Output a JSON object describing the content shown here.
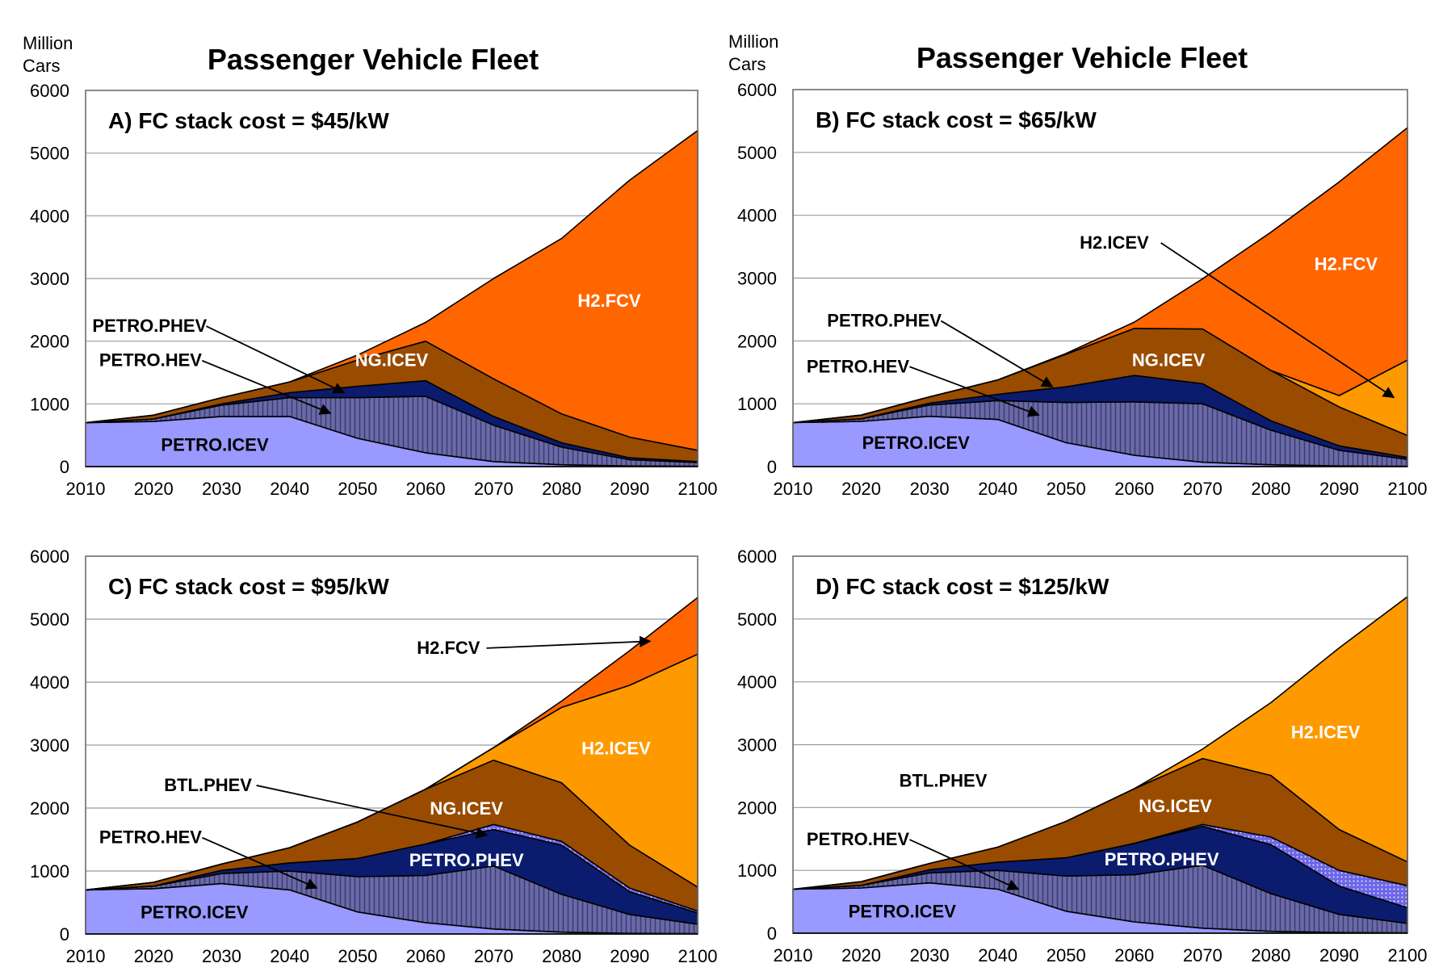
{
  "figure_title": "Passenger Vehicle Fleet",
  "unit_label_line1": "Million",
  "unit_label_line2": "Cars",
  "colors": {
    "PETRO.ICEV": "#9999ff",
    "PETRO.HEV": "#6a6aa6",
    "PETRO.PHEV": "#0b1c6e",
    "BTL.PHEV": "#6c66e8",
    "NG.ICEV": "#994c00",
    "H2.ICEV": "#ff9900",
    "H2.FCV": "#ff6600"
  },
  "chart_data": [
    {
      "type": "area",
      "stacked": true,
      "title": "A) FC stack cost = $45/kW",
      "ylabel": "Million Cars",
      "xlabel": "",
      "x": [
        2010,
        2020,
        2030,
        2040,
        2050,
        2060,
        2070,
        2080,
        2090,
        2100
      ],
      "ylim": [
        0,
        6000
      ],
      "yticks": [
        0,
        1000,
        2000,
        3000,
        4000,
        5000,
        6000
      ],
      "series": [
        {
          "name": "PETRO.ICEV",
          "values": [
            700,
            720,
            800,
            800,
            450,
            220,
            80,
            30,
            10,
            5
          ]
        },
        {
          "name": "PETRO.HEV",
          "values": [
            0,
            40,
            180,
            300,
            650,
            900,
            580,
            280,
            100,
            60
          ]
        },
        {
          "name": "PETRO.PHEV",
          "values": [
            0,
            0,
            20,
            80,
            180,
            250,
            140,
            70,
            30,
            15
          ]
        },
        {
          "name": "BTL.PHEV",
          "values": [
            0,
            0,
            0,
            0,
            0,
            0,
            0,
            0,
            0,
            0
          ]
        },
        {
          "name": "NG.ICEV",
          "values": [
            0,
            60,
            100,
            170,
            420,
            630,
            600,
            460,
            330,
            180
          ]
        },
        {
          "name": "H2.ICEV",
          "values": [
            0,
            0,
            0,
            0,
            0,
            0,
            0,
            0,
            0,
            0
          ]
        },
        {
          "name": "H2.FCV",
          "values": [
            0,
            0,
            0,
            0,
            80,
            300,
            1600,
            2800,
            4100,
            5100
          ]
        }
      ],
      "annotations": [
        {
          "text": "PETRO.PHEV",
          "series": "PETRO.PHEV",
          "arrow": true,
          "at": [
            2048,
            1180
          ],
          "pos": [
            2011,
            2150
          ],
          "anchor": "start"
        },
        {
          "text": "PETRO.HEV",
          "series": "PETRO.HEV",
          "arrow": true,
          "at": [
            2046,
            850
          ],
          "pos": [
            2012,
            1600
          ],
          "anchor": "start"
        },
        {
          "text": "NG.ICEV",
          "series": "NG.ICEV",
          "arrow": false,
          "pos": [
            2055,
            1600
          ],
          "anchor": "middle",
          "color": "#ffffff"
        },
        {
          "text": "H2.FCV",
          "series": "H2.FCV",
          "arrow": false,
          "pos": [
            2087,
            2550
          ],
          "anchor": "middle",
          "color": "#ffffff"
        },
        {
          "text": "PETRO.ICEV",
          "series": "PETRO.ICEV",
          "arrow": false,
          "pos": [
            2029,
            250
          ],
          "anchor": "middle",
          "color": "#000000"
        }
      ]
    },
    {
      "type": "area",
      "stacked": true,
      "title": "B) FC stack cost = $65/kW",
      "ylabel": "Million Cars",
      "xlabel": "",
      "x": [
        2010,
        2020,
        2030,
        2040,
        2050,
        2060,
        2070,
        2080,
        2090,
        2100
      ],
      "ylim": [
        0,
        6000
      ],
      "yticks": [
        0,
        1000,
        2000,
        3000,
        4000,
        5000,
        6000
      ],
      "series": [
        {
          "name": "PETRO.ICEV",
          "values": [
            700,
            720,
            800,
            750,
            380,
            180,
            70,
            30,
            10,
            5
          ]
        },
        {
          "name": "PETRO.HEV",
          "values": [
            0,
            40,
            180,
            300,
            640,
            850,
            930,
            550,
            250,
            110
          ]
        },
        {
          "name": "PETRO.PHEV",
          "values": [
            0,
            0,
            30,
            100,
            250,
            420,
            320,
            150,
            70,
            30
          ]
        },
        {
          "name": "BTL.PHEV",
          "values": [
            0,
            0,
            0,
            0,
            0,
            0,
            0,
            0,
            0,
            0
          ]
        },
        {
          "name": "NG.ICEV",
          "values": [
            0,
            60,
            100,
            230,
            520,
            750,
            870,
            800,
            620,
            350
          ]
        },
        {
          "name": "H2.ICEV",
          "values": [
            0,
            0,
            0,
            0,
            0,
            0,
            0,
            0,
            180,
            1200
          ]
        },
        {
          "name": "H2.FCV",
          "values": [
            0,
            0,
            0,
            0,
            10,
            100,
            800,
            2200,
            3400,
            3700
          ]
        }
      ],
      "annotations": [
        {
          "text": "H2.ICEV",
          "series": "H2.ICEV",
          "arrow": true,
          "at": [
            2098,
            1100
          ],
          "pos": [
            2052,
            3470
          ],
          "anchor": "start"
        },
        {
          "text": "H2.FCV",
          "series": "H2.FCV",
          "arrow": false,
          "pos": [
            2091,
            3130
          ],
          "anchor": "middle",
          "color": "#ffffff"
        },
        {
          "text": "PETRO.PHEV",
          "series": "PETRO.PHEV",
          "arrow": true,
          "at": [
            2048,
            1270
          ],
          "pos": [
            2015,
            2230
          ],
          "anchor": "start"
        },
        {
          "text": "PETRO.HEV",
          "series": "PETRO.HEV",
          "arrow": true,
          "at": [
            2046,
            820
          ],
          "pos": [
            2012,
            1500
          ],
          "anchor": "start"
        },
        {
          "text": "NG.ICEV",
          "series": "NG.ICEV",
          "arrow": false,
          "pos": [
            2065,
            1600
          ],
          "anchor": "middle",
          "color": "#ffffff"
        },
        {
          "text": "PETRO.ICEV",
          "series": "PETRO.ICEV",
          "arrow": false,
          "pos": [
            2028,
            280
          ],
          "anchor": "middle",
          "color": "#000000"
        }
      ]
    },
    {
      "type": "area",
      "stacked": true,
      "title": "C) FC stack cost = $95/kW",
      "ylabel": "Million Cars",
      "xlabel": "",
      "x": [
        2010,
        2020,
        2030,
        2040,
        2050,
        2060,
        2070,
        2080,
        2090,
        2100
      ],
      "ylim": [
        0,
        6000
      ],
      "yticks": [
        0,
        1000,
        2000,
        3000,
        4000,
        5000,
        6000
      ],
      "series": [
        {
          "name": "PETRO.ICEV",
          "values": [
            700,
            720,
            800,
            700,
            350,
            180,
            80,
            30,
            10,
            5
          ]
        },
        {
          "name": "PETRO.HEV",
          "values": [
            0,
            40,
            160,
            300,
            560,
            750,
            1000,
            600,
            300,
            150
          ]
        },
        {
          "name": "PETRO.PHEV",
          "values": [
            0,
            0,
            50,
            130,
            290,
            500,
            580,
            780,
            360,
            180
          ]
        },
        {
          "name": "BTL.PHEV",
          "values": [
            0,
            0,
            0,
            0,
            0,
            0,
            80,
            60,
            60,
            30
          ]
        },
        {
          "name": "NG.ICEV",
          "values": [
            0,
            60,
            100,
            240,
            580,
            870,
            1020,
            930,
            680,
            380
          ]
        },
        {
          "name": "H2.ICEV",
          "values": [
            0,
            0,
            0,
            0,
            0,
            0,
            200,
            1200,
            2540,
            3700
          ]
        },
        {
          "name": "H2.FCV",
          "values": [
            0,
            0,
            0,
            0,
            0,
            0,
            0,
            100,
            550,
            900
          ]
        }
      ],
      "annotations": [
        {
          "text": "H2.FCV",
          "series": "H2.FCV",
          "arrow": true,
          "at": [
            2093,
            4650
          ],
          "pos": [
            2068,
            4450
          ],
          "anchor": "end"
        },
        {
          "text": "H2.ICEV",
          "series": "H2.ICEV",
          "arrow": false,
          "pos": [
            2088,
            2850
          ],
          "anchor": "middle",
          "color": "#ffffff"
        },
        {
          "text": "BTL.PHEV",
          "series": "BTL.PHEV",
          "arrow": true,
          "at": [
            2069,
            1570
          ],
          "pos": [
            2028,
            2270
          ],
          "anchor": "middle"
        },
        {
          "text": "NG.ICEV",
          "series": "NG.ICEV",
          "arrow": false,
          "pos": [
            2066,
            1900
          ],
          "anchor": "middle",
          "color": "#ffffff"
        },
        {
          "text": "PETRO.PHEV",
          "series": "PETRO.PHEV",
          "arrow": false,
          "pos": [
            2066,
            1080
          ],
          "anchor": "middle",
          "color": "#ffffff"
        },
        {
          "text": "PETRO.HEV",
          "series": "PETRO.HEV",
          "arrow": true,
          "at": [
            2044,
            730
          ],
          "pos": [
            2012,
            1440
          ],
          "anchor": "start"
        },
        {
          "text": "PETRO.ICEV",
          "series": "PETRO.ICEV",
          "arrow": false,
          "pos": [
            2026,
            250
          ],
          "anchor": "middle",
          "color": "#000000"
        }
      ]
    },
    {
      "type": "area",
      "stacked": true,
      "title": "D) FC stack cost = $125/kW",
      "ylabel": "Million Cars",
      "xlabel": "",
      "x": [
        2010,
        2020,
        2030,
        2040,
        2050,
        2060,
        2070,
        2080,
        2090,
        2100
      ],
      "ylim": [
        0,
        6000
      ],
      "yticks": [
        0,
        1000,
        2000,
        3000,
        4000,
        5000,
        6000
      ],
      "series": [
        {
          "name": "PETRO.ICEV",
          "values": [
            700,
            720,
            800,
            700,
            350,
            180,
            80,
            30,
            10,
            5
          ]
        },
        {
          "name": "PETRO.HEV",
          "values": [
            0,
            40,
            160,
            300,
            560,
            750,
            1000,
            600,
            290,
            150
          ]
        },
        {
          "name": "PETRO.PHEV",
          "values": [
            0,
            0,
            50,
            130,
            290,
            500,
            620,
            780,
            450,
            250
          ]
        },
        {
          "name": "BTL.PHEV",
          "values": [
            0,
            0,
            0,
            0,
            0,
            0,
            30,
            120,
            250,
            350
          ]
        },
        {
          "name": "NG.ICEV",
          "values": [
            0,
            60,
            100,
            240,
            580,
            870,
            1050,
            980,
            650,
            380
          ]
        },
        {
          "name": "H2.ICEV",
          "values": [
            0,
            0,
            0,
            0,
            0,
            0,
            150,
            1160,
            2890,
            4220
          ]
        },
        {
          "name": "H2.FCV",
          "values": [
            0,
            0,
            0,
            0,
            0,
            0,
            0,
            0,
            0,
            0
          ]
        }
      ],
      "annotations": [
        {
          "text": "H2.ICEV",
          "series": "H2.ICEV",
          "arrow": false,
          "pos": [
            2088,
            3100
          ],
          "anchor": "middle",
          "color": "#ffffff"
        },
        {
          "text": "BTL.PHEV",
          "series": "BTL.PHEV",
          "arrow": false,
          "pos": [
            2032,
            2330
          ],
          "anchor": "middle"
        },
        {
          "text": "NG.ICEV",
          "series": "NG.ICEV",
          "arrow": false,
          "pos": [
            2066,
            1930
          ],
          "anchor": "middle",
          "color": "#ffffff"
        },
        {
          "text": "PETRO.PHEV",
          "series": "PETRO.PHEV",
          "arrow": false,
          "pos": [
            2064,
            1080
          ],
          "anchor": "middle",
          "color": "#ffffff"
        },
        {
          "text": "PETRO.HEV",
          "series": "PETRO.HEV",
          "arrow": true,
          "at": [
            2043,
            700
          ],
          "pos": [
            2012,
            1400
          ],
          "anchor": "start"
        },
        {
          "text": "PETRO.ICEV",
          "series": "PETRO.ICEV",
          "arrow": false,
          "pos": [
            2026,
            250
          ],
          "anchor": "middle",
          "color": "#000000"
        }
      ]
    }
  ]
}
